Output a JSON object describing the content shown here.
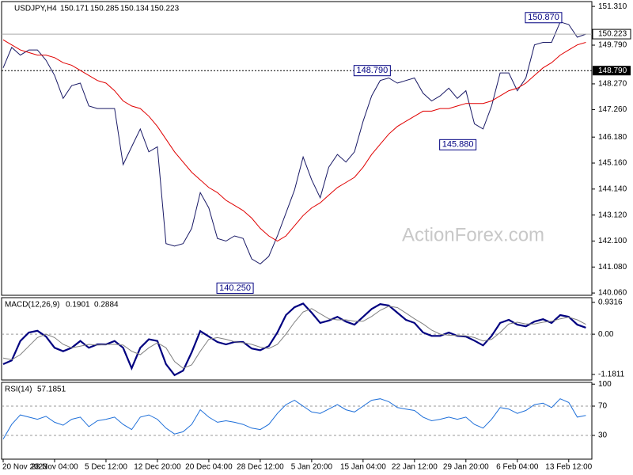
{
  "chart_data": [
    {
      "type": "line",
      "title": "USDJPY,H4",
      "ohlc": [
        150.171,
        150.285,
        150.134,
        150.223
      ],
      "watermark": "ActionForex.com",
      "categories": [
        "20 Nov 2023",
        null,
        null,
        null,
        null,
        null,
        "28 Nov 04:00",
        null,
        null,
        null,
        null,
        null,
        "5 Dec 12:00",
        null,
        null,
        null,
        null,
        null,
        "12 Dec 20:00",
        null,
        null,
        null,
        null,
        null,
        "20 Dec 04:00",
        null,
        null,
        null,
        null,
        null,
        "28 Dec 12:00",
        null,
        null,
        null,
        null,
        null,
        "5 Jan 20:00",
        null,
        null,
        null,
        null,
        null,
        "15 Jan 04:00",
        null,
        null,
        null,
        null,
        null,
        "22 Jan 12:00",
        null,
        null,
        null,
        null,
        null,
        "29 Jan 20:00",
        null,
        null,
        null,
        null,
        null,
        "6 Feb 04:00",
        null,
        null,
        null,
        null,
        null,
        "13 Feb 12:00",
        null,
        null
      ],
      "series": [
        {
          "color": "#1a1a66",
          "values": [
            148.9,
            149.7,
            149.4,
            149.6,
            149.6,
            149.2,
            148.6,
            147.7,
            148.2,
            148.3,
            147.4,
            147.3,
            147.3,
            147.3,
            145.1,
            145.8,
            146.5,
            145.6,
            145.8,
            142.0,
            141.9,
            142.0,
            142.6,
            144.0,
            143.4,
            142.2,
            142.1,
            142.3,
            142.2,
            141.4,
            141.2,
            141.5,
            142.3,
            143.2,
            144.1,
            145.4,
            144.5,
            143.8,
            145.0,
            145.5,
            145.2,
            145.6,
            146.8,
            147.8,
            148.4,
            148.5,
            148.3,
            148.4,
            148.5,
            147.9,
            147.6,
            147.8,
            148.1,
            147.7,
            148.0,
            146.7,
            146.5,
            147.4,
            148.7,
            148.7,
            148.0,
            148.5,
            149.8,
            149.9,
            149.9,
            150.7,
            150.6,
            150.1,
            150.223
          ]
        },
        {
          "color": "#e00000",
          "values": [
            150.0,
            149.8,
            149.6,
            149.5,
            149.4,
            149.4,
            149.3,
            149.1,
            149.0,
            148.8,
            148.6,
            148.4,
            148.3,
            148.0,
            147.6,
            147.4,
            147.3,
            147.0,
            146.6,
            146.1,
            145.6,
            145.2,
            144.8,
            144.5,
            144.2,
            144.0,
            143.7,
            143.5,
            143.3,
            143.0,
            142.6,
            142.3,
            142.1,
            142.3,
            142.7,
            143.1,
            143.4,
            143.6,
            143.9,
            144.2,
            144.4,
            144.6,
            145.0,
            145.5,
            145.9,
            146.3,
            146.6,
            146.8,
            147.0,
            147.2,
            147.2,
            147.3,
            147.3,
            147.4,
            147.5,
            147.5,
            147.5,
            147.6,
            147.8,
            148.0,
            148.1,
            148.3,
            148.6,
            148.9,
            149.1,
            149.4,
            149.6,
            149.8,
            149.9
          ]
        }
      ],
      "ylim": [
        139.97,
        151.5
      ],
      "yticks": [
        {
          "value": 151.31,
          "label": "151.310"
        },
        {
          "value": 149.79,
          "label": "149.790"
        },
        {
          "value": 148.27,
          "label": "148.270"
        },
        {
          "value": 147.26,
          "label": "147.260"
        },
        {
          "value": 146.18,
          "label": "146.180"
        },
        {
          "value": 145.16,
          "label": "145.160"
        },
        {
          "value": 144.14,
          "label": "144.140"
        },
        {
          "value": 143.12,
          "label": "143.120"
        },
        {
          "value": 142.1,
          "label": "142.100"
        },
        {
          "value": 141.08,
          "label": "141.080"
        },
        {
          "value": 140.06,
          "label": "140.060"
        }
      ],
      "level": {
        "value": 148.79,
        "label": "148.790"
      },
      "annotations": [
        {
          "label": "150.870",
          "value": 150.87,
          "index": 65
        },
        {
          "label": "148.790",
          "value": 148.79,
          "index": 45
        },
        {
          "label": "145.880",
          "value": 145.88,
          "index": 55
        },
        {
          "label": "140.250",
          "value": 140.25,
          "index": 29
        }
      ]
    },
    {
      "type": "line",
      "title": "MACD(12,26,9)",
      "series": [
        {
          "color": "#000080",
          "values": [
            -0.88,
            -0.77,
            -0.2,
            0.05,
            0.1,
            -0.07,
            -0.4,
            -0.5,
            -0.4,
            -0.2,
            -0.4,
            -0.3,
            -0.3,
            -0.2,
            -0.4,
            -1.0,
            -0.4,
            -0.15,
            -0.2,
            -0.88,
            -1.2,
            -1.07,
            -0.53,
            0.09,
            -0.07,
            -0.23,
            -0.3,
            -0.23,
            -0.23,
            -0.42,
            -0.47,
            -0.35,
            0.05,
            0.56,
            0.79,
            0.9,
            0.63,
            0.33,
            0.4,
            0.51,
            0.37,
            0.28,
            0.51,
            0.74,
            0.88,
            0.84,
            0.63,
            0.42,
            0.33,
            0.05,
            -0.05,
            -0.05,
            0.05,
            -0.05,
            -0.07,
            -0.19,
            -0.33,
            -0.05,
            0.33,
            0.42,
            0.28,
            0.23,
            0.37,
            0.44,
            0.33,
            0.56,
            0.51,
            0.28,
            0.1901
          ]
        },
        {
          "color": "#808080",
          "values": [
            -0.7,
            -0.75,
            -0.6,
            -0.35,
            -0.1,
            0.0,
            -0.1,
            -0.3,
            -0.4,
            -0.35,
            -0.3,
            -0.32,
            -0.3,
            -0.3,
            -0.32,
            -0.5,
            -0.6,
            -0.4,
            -0.25,
            -0.4,
            -0.8,
            -1.0,
            -0.9,
            -0.5,
            -0.15,
            -0.1,
            -0.15,
            -0.22,
            -0.25,
            -0.3,
            -0.38,
            -0.42,
            -0.3,
            0.0,
            0.35,
            0.65,
            0.75,
            0.6,
            0.45,
            0.42,
            0.42,
            0.38,
            0.38,
            0.52,
            0.7,
            0.82,
            0.78,
            0.62,
            0.45,
            0.3,
            0.12,
            0.0,
            -0.03,
            -0.04,
            -0.05,
            -0.1,
            -0.2,
            -0.15,
            0.05,
            0.3,
            0.35,
            0.3,
            0.3,
            0.35,
            0.38,
            0.45,
            0.5,
            0.42,
            0.2884
          ]
        }
      ],
      "ylim": [
        -1.344,
        1.071
      ],
      "yticks": [
        0.9316,
        {
          "value": 0,
          "label": "0.00"
        },
        -1.1811
      ],
      "level_lines": [
        0
      ]
    },
    {
      "type": "line",
      "title": "RSI(14)",
      "series": [
        {
          "color": "#1e6fd9",
          "values": [
            25,
            45,
            58,
            55,
            52,
            56,
            48,
            44,
            52,
            55,
            42,
            50,
            52,
            55,
            45,
            38,
            55,
            58,
            52,
            40,
            32,
            35,
            45,
            65,
            55,
            48,
            50,
            48,
            45,
            40,
            38,
            45,
            60,
            72,
            78,
            70,
            62,
            60,
            66,
            72,
            65,
            62,
            70,
            78,
            80,
            76,
            68,
            66,
            64,
            55,
            50,
            52,
            55,
            52,
            55,
            45,
            40,
            52,
            68,
            66,
            60,
            64,
            72,
            74,
            68,
            80,
            75,
            55,
            57.1851
          ]
        }
      ],
      "ylim": [
        -2.4,
        102.4
      ],
      "yticks": [
        30,
        70,
        100
      ],
      "level_lines": [
        30,
        70
      ]
    }
  ]
}
